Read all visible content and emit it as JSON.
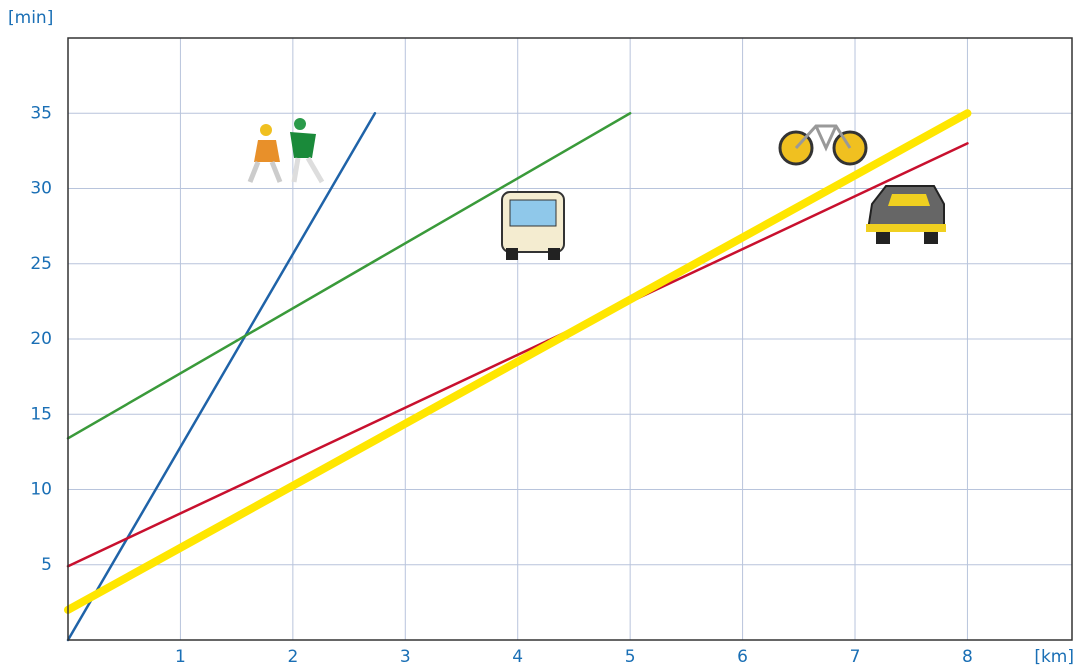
{
  "chart_data": {
    "type": "line",
    "x_label": "[km]",
    "y_label": "[min]",
    "xlim": [
      0,
      8.93
    ],
    "ylim": [
      0,
      40
    ],
    "xticks": [
      1,
      2,
      3,
      4,
      5,
      6,
      7,
      8
    ],
    "yticks": [
      5,
      10,
      15,
      20,
      25,
      30,
      35
    ],
    "grid": true,
    "series": [
      {
        "color": "#1f63a8",
        "width": 2.5,
        "x": [
          0,
          2.73
        ],
        "values": [
          0,
          35
        ]
      },
      {
        "color": "#3a9a3a",
        "width": 2.5,
        "x": [
          0,
          5
        ],
        "values": [
          13.4,
          35
        ]
      },
      {
        "color": "#c8102e",
        "width": 2.5,
        "x": [
          0,
          8
        ],
        "values": [
          4.9,
          33
        ]
      },
      {
        "color": "#ffe600",
        "width": 8,
        "x": [
          0,
          8
        ],
        "values": [
          2,
          35
        ]
      }
    ]
  }
}
